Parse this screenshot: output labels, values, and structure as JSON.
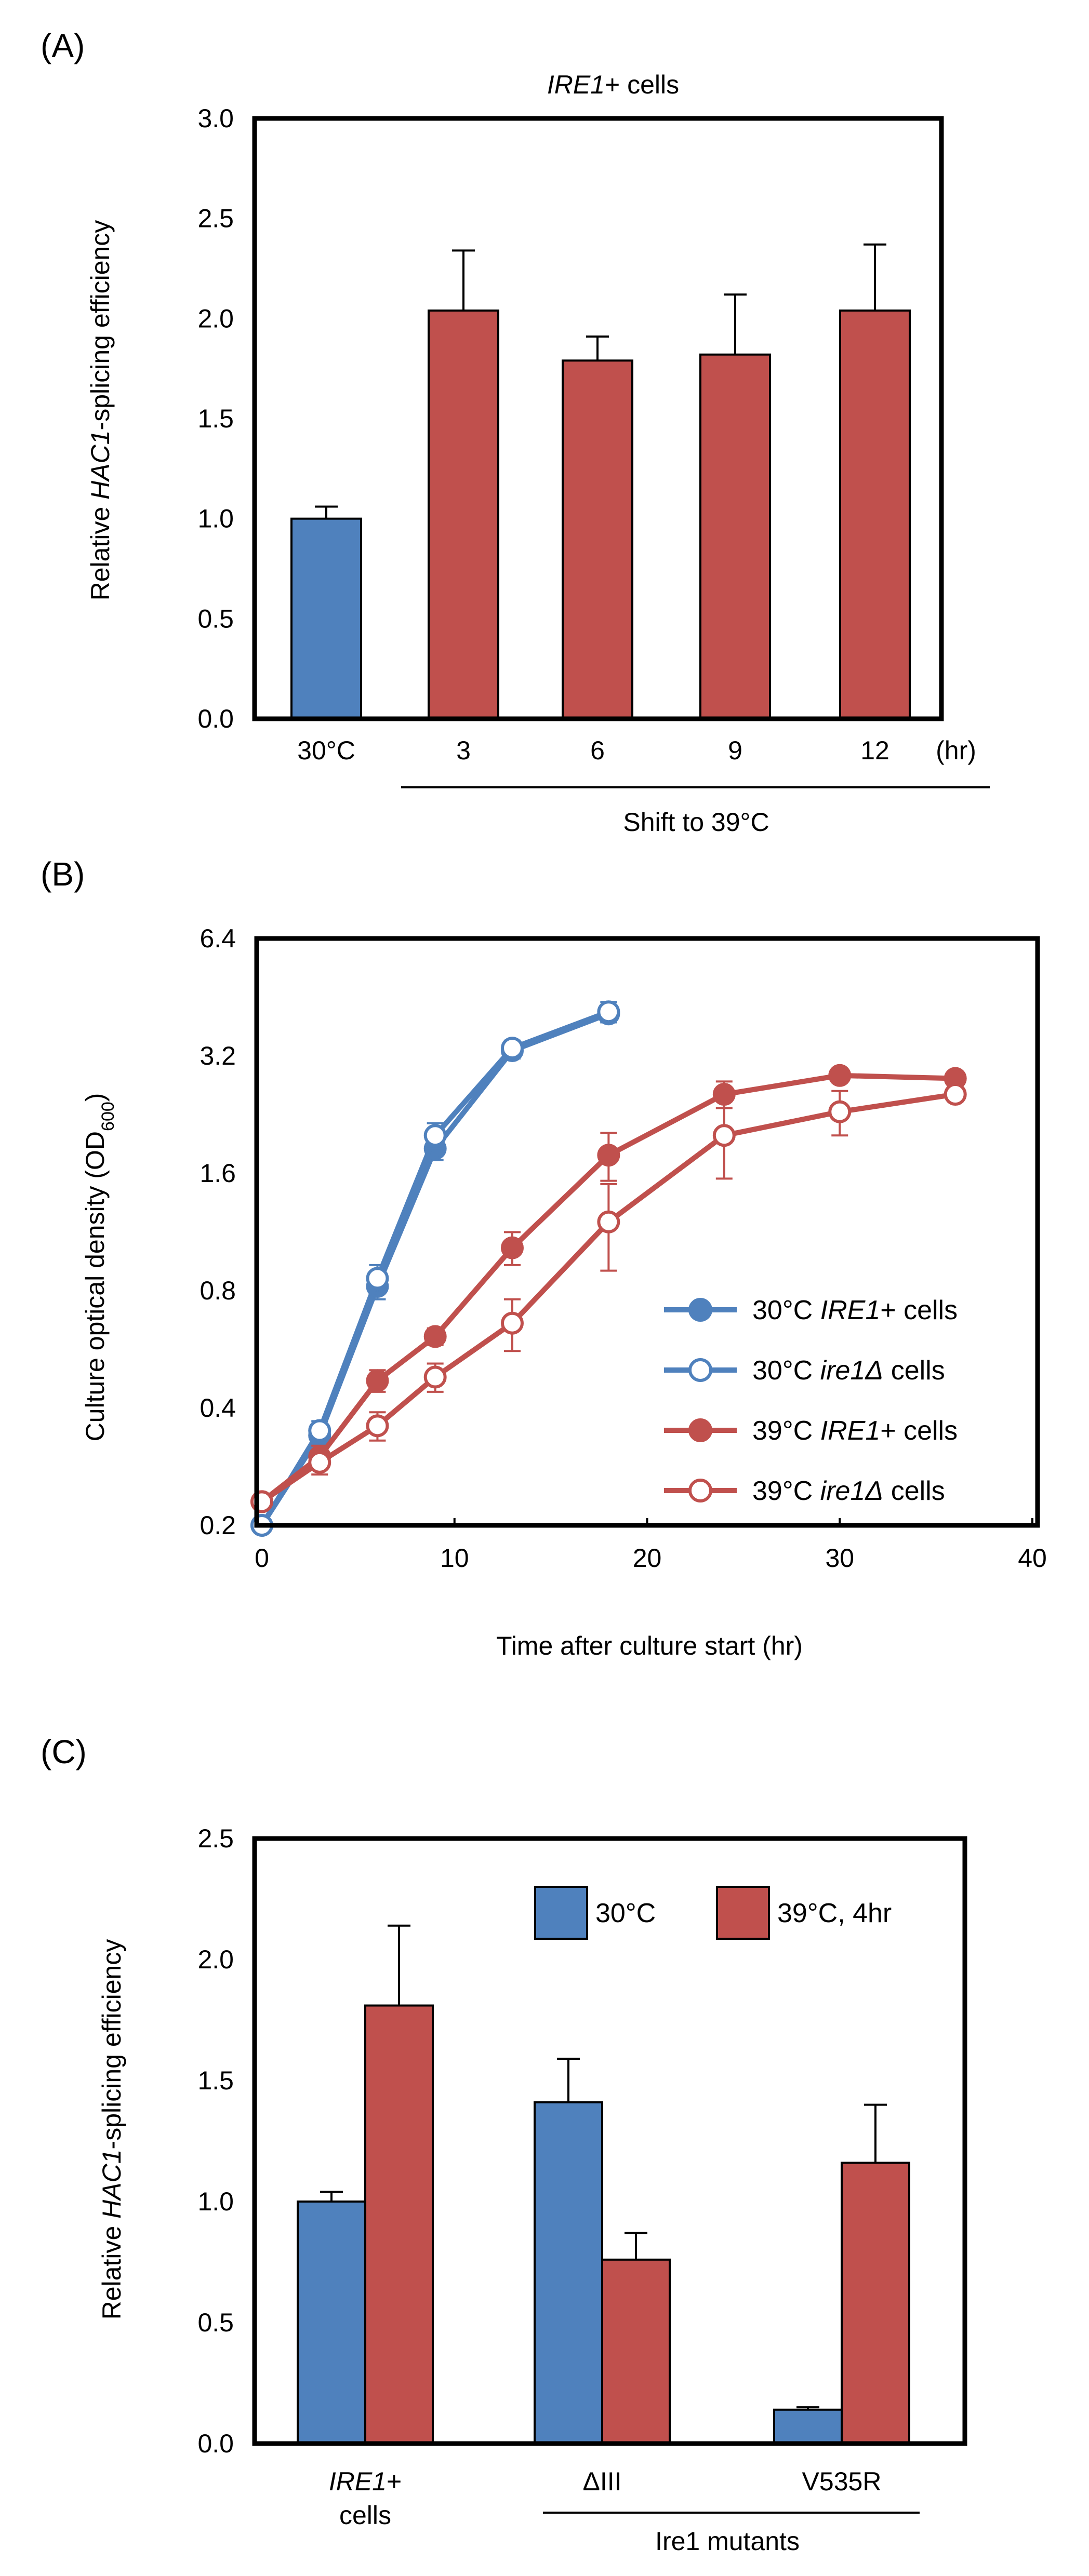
{
  "colors": {
    "blue": "#4f81bd",
    "red": "#c0504d",
    "axis": "#000000"
  },
  "chart_data": [
    {
      "panel": "(A)",
      "type": "bar",
      "title_italic": "IRE1",
      "title_rest": "+ cells",
      "ylabel_pre": "Relative ",
      "ylabel_italic": "HAC1",
      "ylabel_post": "-splicing efficiency",
      "ylim": [
        0,
        3.0
      ],
      "yticks": [
        "0.0",
        "0.5",
        "1.0",
        "1.5",
        "2.0",
        "2.5",
        "3.0"
      ],
      "categories": [
        "30°C",
        "3",
        "6",
        "9",
        "12"
      ],
      "values": [
        1.0,
        2.04,
        1.79,
        1.82,
        2.04
      ],
      "errors": [
        0.06,
        0.3,
        0.12,
        0.3,
        0.33
      ],
      "bar_colors": [
        "blue",
        "red",
        "red",
        "red",
        "red"
      ],
      "unit": "(hr)",
      "group_label": "Shift to 39°C"
    },
    {
      "panel": "(B)",
      "type": "line",
      "ylabel_pre": "Culture optical density (OD",
      "ylabel_sub": "600",
      "ylabel_post": ")",
      "xlabel": "Time after culture start (hr)",
      "yscale": "log2",
      "ylim": [
        0.2,
        6.4
      ],
      "yticks": [
        "0.2",
        "0.4",
        "0.8",
        "1.6",
        "3.2",
        "6.4"
      ],
      "xlim": [
        0,
        40
      ],
      "xticks": [
        "0",
        "10",
        "20",
        "30",
        "40"
      ],
      "series": [
        {
          "temp": "30°C ",
          "italic": "IRE1",
          "rest": "+ cells",
          "color": "blue",
          "filled": true,
          "x": [
            0,
            3,
            6,
            9,
            13,
            18
          ],
          "y": [
            0.2,
            0.34,
            0.82,
            1.85,
            3.3,
            4.1
          ],
          "err": [
            0.0,
            0.02,
            0.06,
            0.12,
            0.15,
            0.2
          ]
        },
        {
          "temp": "30°C ",
          "italic": "ire1Δ",
          "rest": " cells",
          "color": "blue",
          "filled": false,
          "x": [
            0,
            3,
            6,
            9,
            13,
            18
          ],
          "y": [
            0.2,
            0.35,
            0.86,
            2.0,
            3.35,
            4.15
          ],
          "err": [
            0.0,
            0.02,
            0.07,
            0.15,
            0.15,
            0.25
          ]
        },
        {
          "temp": "39°C ",
          "italic": "IRE1",
          "rest": "+ cells",
          "color": "red",
          "filled": true,
          "x": [
            0,
            3,
            6,
            9,
            13,
            18,
            24,
            30,
            36
          ],
          "y": [
            0.23,
            0.3,
            0.47,
            0.61,
            1.03,
            1.78,
            2.55,
            2.85,
            2.8
          ],
          "err": [
            0.01,
            0.02,
            0.03,
            0.03,
            0.1,
            0.25,
            0.2,
            0.1,
            0.1
          ]
        },
        {
          "temp": "39°C ",
          "italic": "ire1Δ",
          "rest": " cells",
          "color": "red",
          "filled": false,
          "x": [
            0,
            3,
            6,
            9,
            13,
            18,
            24,
            30,
            36
          ],
          "y": [
            0.23,
            0.29,
            0.36,
            0.48,
            0.66,
            1.2,
            2.0,
            2.3,
            2.55
          ],
          "err": [
            0.01,
            0.02,
            0.03,
            0.04,
            0.1,
            0.3,
            0.45,
            0.3,
            0.1
          ]
        }
      ]
    },
    {
      "panel": "(C)",
      "type": "bar",
      "ylabel_pre": "Relative  ",
      "ylabel_italic": "HAC1",
      "ylabel_post": "-splicing efficiency",
      "ylim": [
        0,
        2.5
      ],
      "yticks": [
        "0.0",
        "0.5",
        "1.0",
        "1.5",
        "2.0",
        "2.5"
      ],
      "groups": [
        {
          "label_italic": "IRE1",
          "label_rest": "+",
          "label_line2": "cells"
        },
        {
          "label": "ΔIII"
        },
        {
          "label": "V535R"
        }
      ],
      "series": [
        {
          "name": "30°C",
          "color": "blue",
          "values": [
            1.0,
            1.41,
            0.14
          ],
          "errors": [
            0.04,
            0.18,
            0.01
          ]
        },
        {
          "name": "39°C, 4hr",
          "color": "red",
          "values": [
            1.81,
            0.76,
            1.16
          ],
          "errors": [
            0.33,
            0.11,
            0.24
          ]
        }
      ],
      "group_label": "Ire1 mutants"
    }
  ]
}
